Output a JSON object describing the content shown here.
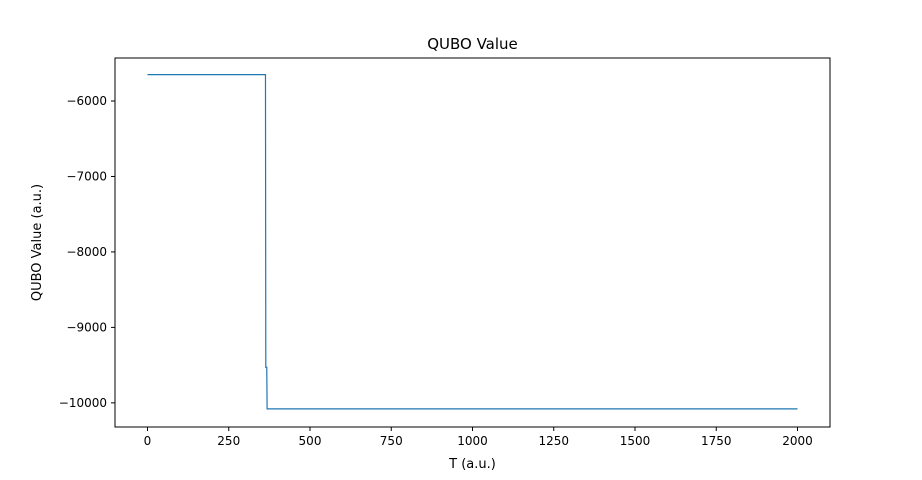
{
  "chart_data": {
    "type": "line",
    "title": "QUBO Value",
    "xlabel": "T (a.u.)",
    "ylabel": "QUBO Value (a.u.)",
    "xlim": [
      -100,
      2100
    ],
    "ylim": [
      -10320,
      -5430
    ],
    "x_ticks": [
      0,
      250,
      500,
      750,
      1000,
      1250,
      1500,
      1750,
      2000
    ],
    "x_tick_labels": [
      "0",
      "250",
      "500",
      "750",
      "1000",
      "1250",
      "1500",
      "1750",
      "2000"
    ],
    "y_ticks": [
      -6000,
      -7000,
      -8000,
      -9000,
      -10000
    ],
    "y_tick_labels": [
      "−6000",
      "−7000",
      "−8000",
      "−9000",
      "−10000"
    ],
    "grid": false,
    "series": [
      {
        "color": "#1f77b4",
        "x": [
          0,
          363,
          364,
          367,
          368,
          2000
        ],
        "y": [
          -5650,
          -5650,
          -9530,
          -9530,
          -10080,
          -10080
        ]
      }
    ]
  }
}
